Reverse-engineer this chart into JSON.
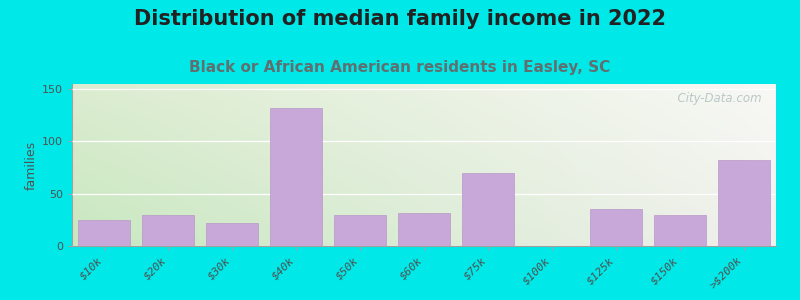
{
  "title": "Distribution of median family income in 2022",
  "subtitle": "Black or African American residents in Easley, SC",
  "ylabel": "families",
  "categories": [
    "$10k",
    "$20k",
    "$30k",
    "$40k",
    "$50k",
    "$60k",
    "$75k",
    "$100k",
    "$125k",
    "$150k",
    ">$200k"
  ],
  "values": [
    25,
    30,
    22,
    132,
    30,
    32,
    70,
    0,
    35,
    30,
    82
  ],
  "bar_color": "#c8a8d8",
  "bar_edge_color": "#b898c8",
  "background_color": "#00e8e8",
  "yticks": [
    0,
    50,
    100,
    150
  ],
  "ylim": [
    0,
    155
  ],
  "title_fontsize": 15,
  "subtitle_fontsize": 11,
  "title_color": "#222222",
  "subtitle_color": "#607070",
  "watermark_text": "  City-Data.com",
  "watermark_color": "#b0c0c0"
}
